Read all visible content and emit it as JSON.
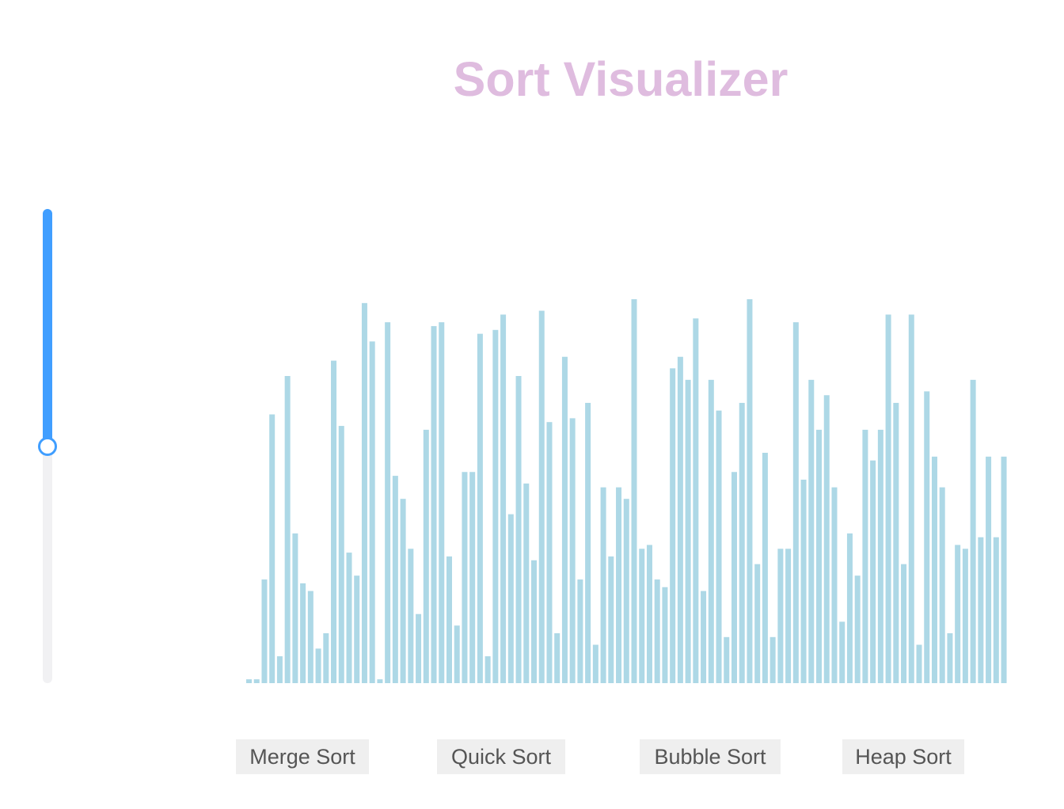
{
  "title": "Sort Visualizer",
  "slider": {
    "value_fraction": 0.5
  },
  "colors": {
    "title": "#dfbcdf",
    "bar": "#add8e6",
    "slider_fill": "#409eff",
    "slider_track": "#f1f1f3",
    "button_bg": "#efefef",
    "button_text": "#555555"
  },
  "buttons": [
    {
      "label": "Merge Sort"
    },
    {
      "label": "Quick Sort"
    },
    {
      "label": "Bubble Sort"
    },
    {
      "label": "Heap Sort"
    }
  ],
  "chart_data": {
    "type": "bar",
    "values": [
      1,
      1,
      27,
      70,
      7,
      80,
      39,
      26,
      24,
      9,
      13,
      84,
      67,
      34,
      28,
      99,
      89,
      1,
      94,
      54,
      48,
      35,
      18,
      66,
      93,
      94,
      33,
      15,
      55,
      55,
      91,
      7,
      92,
      96,
      44,
      80,
      52,
      32,
      97,
      68,
      13,
      85,
      69,
      27,
      73,
      10,
      51,
      33,
      51,
      48,
      100,
      35,
      36,
      27,
      25,
      82,
      85,
      79,
      95,
      24,
      79,
      71,
      12,
      55,
      73,
      100,
      31,
      60,
      12,
      35,
      35,
      94,
      53,
      79,
      66,
      75,
      51,
      16,
      39,
      28,
      66,
      58,
      66,
      96,
      73,
      31,
      96,
      10,
      76,
      59,
      51,
      13,
      36,
      35,
      79,
      38,
      59,
      38,
      59
    ],
    "ylim": [
      0,
      100
    ]
  }
}
